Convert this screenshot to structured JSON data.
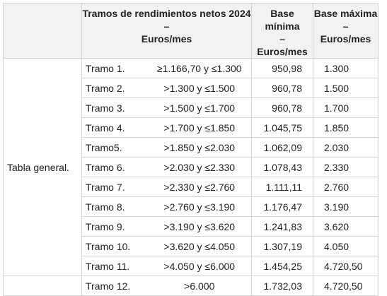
{
  "header": {
    "tramos_title": "Tramos de rendimientos netos 2024",
    "dash": "–",
    "unit": "Euros/mes",
    "base_min_title": "Base mínima",
    "base_max_title": "Base máxima"
  },
  "group_label": "Tabla general.",
  "rows": [
    {
      "tramo": "Tramo 1.",
      "range": "≥1.166,70 y ≤1.300",
      "min": "950,98",
      "max": "1.300"
    },
    {
      "tramo": "Tramo 2.",
      "range": ">1.300 y ≤1.500",
      "min": "960,78",
      "max": "1.500"
    },
    {
      "tramo": "Tramo 3.",
      "range": ">1.500 y ≤1.700",
      "min": "960,78",
      "max": "1.700"
    },
    {
      "tramo": "Tramo 4.",
      "range": ">1.700 y ≤1.850",
      "min": "1.045,75",
      "max": "1.850"
    },
    {
      "tramo": "Tramo5.",
      "range": ">1.850 y ≤2.030",
      "min": "1.062,09",
      "max": "2.030"
    },
    {
      "tramo": "Tramo 6.",
      "range": ">2.030 y ≤2.330",
      "min": "1.078,43",
      "max": "2.330"
    },
    {
      "tramo": "Tramo 7.",
      "range": ">2.330 y ≤2.760",
      "min": "1.111,11",
      "max": "2.760"
    },
    {
      "tramo": "Tramo 8.",
      "range": ">2.760 y ≤3.190",
      "min": "1.176,47",
      "max": "3.190"
    },
    {
      "tramo": "Tramo 9.",
      "range": ">3.190 y ≤3.620",
      "min": "1.241,83",
      "max": "3.620"
    },
    {
      "tramo": "Tramo 10.",
      "range": ">3.620 y ≤4.050",
      "min": "1.307,19",
      "max": "4.050"
    },
    {
      "tramo": "Tramo 11.",
      "range": ">4.050 y ≤6.000",
      "min": "1.454,25",
      "max": "4.720,50"
    },
    {
      "tramo": "Tramo 12.",
      "range": ">6.000",
      "min": "1.732,03",
      "max": "4.720,50"
    }
  ]
}
